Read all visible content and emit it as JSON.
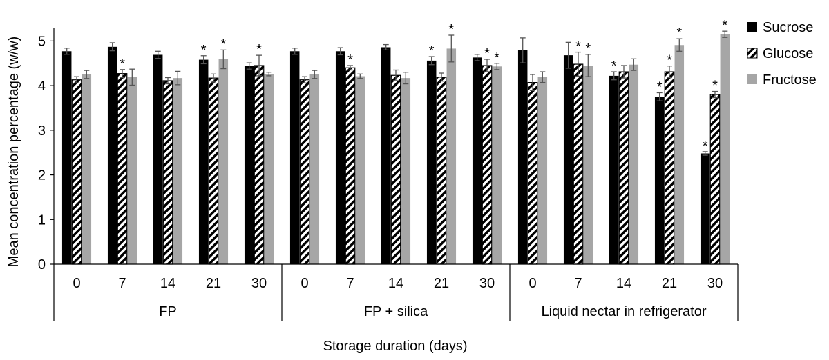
{
  "chart_data": {
    "type": "bar",
    "ylabel": "Mean concentration percentage (w/w)",
    "xlabel": "Storage duration (days)",
    "ylim": [
      0,
      5.3
    ],
    "yticks": [
      0,
      1,
      2,
      3,
      4,
      5
    ],
    "grid": false,
    "legend_position": "top-right",
    "groups": [
      {
        "label": "FP",
        "days": [
          "0",
          "7",
          "14",
          "21",
          "30"
        ]
      },
      {
        "label": "FP + silica",
        "days": [
          "0",
          "7",
          "14",
          "21",
          "30"
        ]
      },
      {
        "label": "Liquid nectar in refrigerator",
        "days": [
          "0",
          "7",
          "14",
          "21",
          "30"
        ]
      }
    ],
    "series": [
      {
        "name": "Sucrose",
        "color": "#000000",
        "pattern": "solid",
        "values": [
          4.77,
          4.87,
          4.69,
          4.58,
          4.44,
          4.77,
          4.77,
          4.86,
          4.56,
          4.63,
          4.79,
          4.68,
          4.22,
          3.75,
          2.48
        ],
        "errors": [
          0.07,
          0.09,
          0.08,
          0.09,
          0.07,
          0.07,
          0.08,
          0.06,
          0.09,
          0.07,
          0.28,
          0.29,
          0.09,
          0.09,
          0.04
        ],
        "significant": [
          false,
          false,
          false,
          true,
          false,
          false,
          false,
          false,
          true,
          false,
          false,
          false,
          true,
          true,
          true
        ]
      },
      {
        "name": "Glucose",
        "color": "#000000",
        "pattern": "diagonal",
        "values": [
          4.13,
          4.27,
          4.11,
          4.17,
          4.45,
          4.13,
          4.4,
          4.23,
          4.19,
          4.45,
          4.07,
          4.48,
          4.31,
          4.31,
          3.8
        ],
        "errors": [
          0.07,
          0.09,
          0.07,
          0.09,
          0.23,
          0.07,
          0.05,
          0.12,
          0.09,
          0.14,
          0.18,
          0.27,
          0.14,
          0.13,
          0.07
        ],
        "significant": [
          false,
          true,
          false,
          false,
          true,
          false,
          true,
          false,
          false,
          true,
          false,
          true,
          false,
          true,
          true
        ]
      },
      {
        "name": "Fructose",
        "color": "#a6a6a6",
        "pattern": "solid",
        "values": [
          4.25,
          4.19,
          4.17,
          4.59,
          4.26,
          4.25,
          4.21,
          4.17,
          4.83,
          4.43,
          4.19,
          4.45,
          4.47,
          4.91,
          5.15
        ],
        "errors": [
          0.09,
          0.18,
          0.15,
          0.21,
          0.04,
          0.09,
          0.05,
          0.13,
          0.3,
          0.07,
          0.12,
          0.25,
          0.13,
          0.14,
          0.07
        ],
        "significant": [
          false,
          false,
          false,
          true,
          false,
          false,
          false,
          false,
          true,
          true,
          false,
          true,
          false,
          true,
          true
        ]
      }
    ],
    "significance_marker": "*"
  }
}
